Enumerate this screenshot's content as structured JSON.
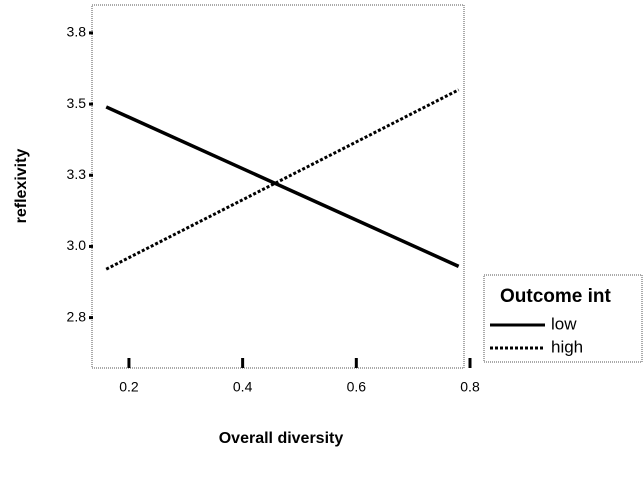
{
  "chart_data": {
    "type": "line",
    "x_label": "Overall diversity",
    "y_label": "reflexivity",
    "legend_title": "Outcome int",
    "x": [
      0.16,
      0.78
    ],
    "series": [
      {
        "name": "low",
        "color": "#000000",
        "style": "solid",
        "values": [
          3.49,
          2.93
        ]
      },
      {
        "name": "high",
        "color": "#000000",
        "style": "dotted",
        "values": [
          2.92,
          3.55
        ]
      }
    ],
    "xlim": [
      0.135,
      0.8
    ],
    "xticks": [
      0.2,
      0.4,
      0.6,
      0.8
    ],
    "ylim": [
      2.573,
      3.848
    ],
    "yticks": [
      {
        "value": 2.75,
        "label": "2.8"
      },
      {
        "value": 3.0,
        "label": "3.0"
      },
      {
        "value": 3.25,
        "label": "3.3"
      },
      {
        "value": 3.5,
        "label": "3.5"
      },
      {
        "value": 3.75,
        "label": "3.8"
      }
    ],
    "legend": "right"
  }
}
